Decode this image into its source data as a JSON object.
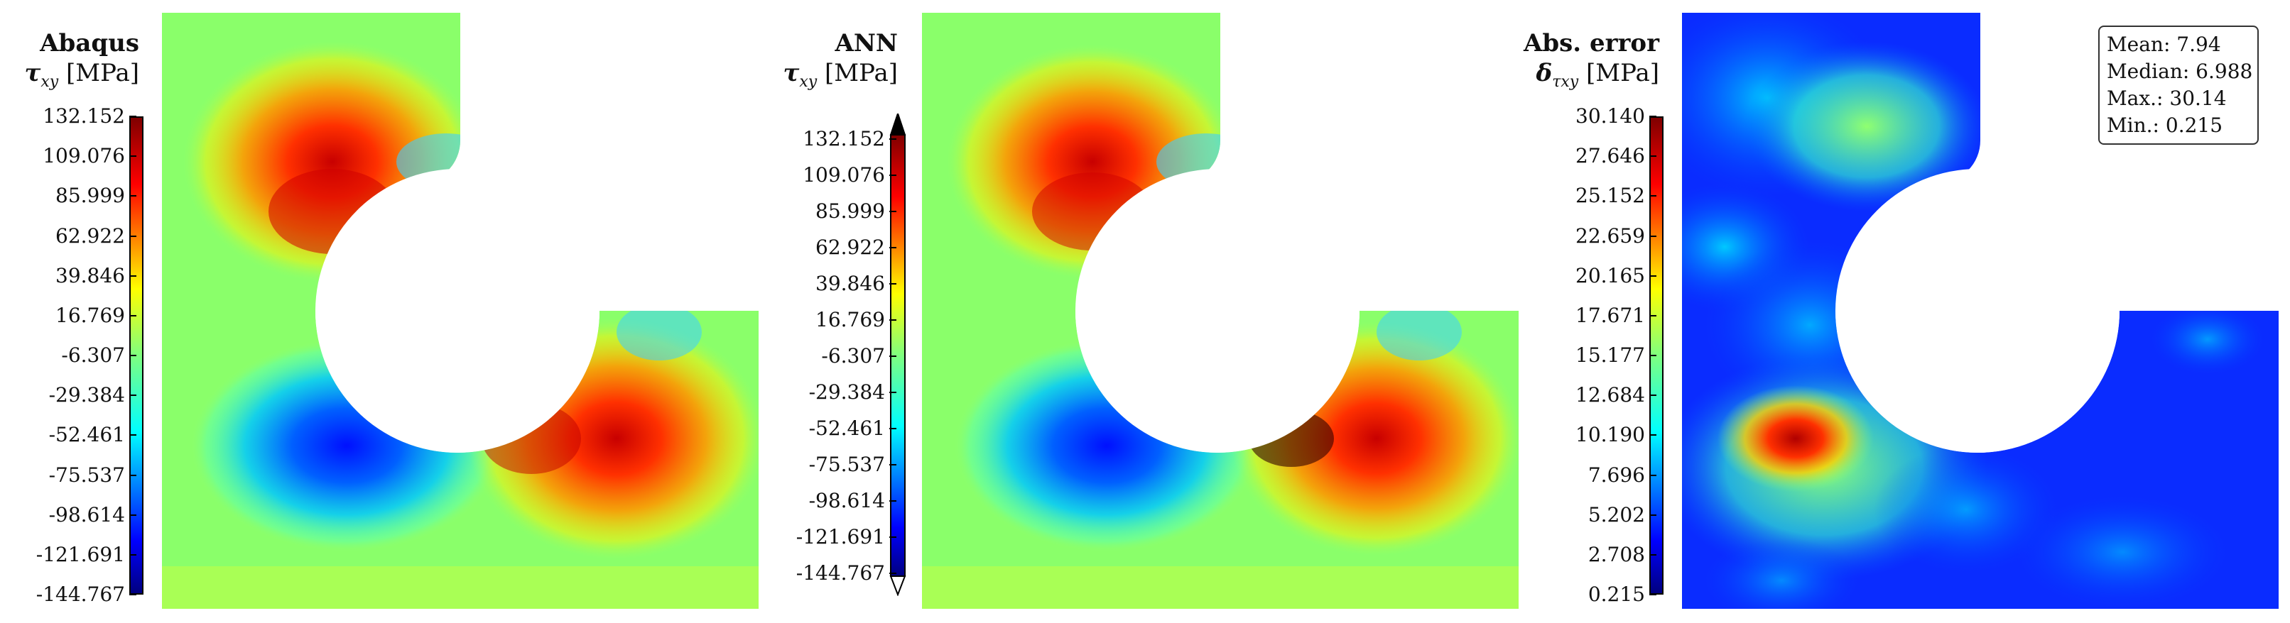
{
  "panels": [
    {
      "title": "Abaqus",
      "symbol": "τ",
      "symbol_sub": "xy",
      "unit": "[MPa]",
      "ticks": [
        "132.152",
        "109.076",
        "85.999",
        "62.922",
        "39.846",
        "16.769",
        "-6.307",
        "-29.384",
        "-52.461",
        "-75.537",
        "-98.614",
        "-121.691",
        "-144.767"
      ]
    },
    {
      "title": "ANN",
      "symbol": "τ",
      "symbol_sub": "xy",
      "unit": "[MPa]",
      "ticks": [
        "132.152",
        "109.076",
        "85.999",
        "62.922",
        "39.846",
        "16.769",
        "-6.307",
        "-29.384",
        "-52.461",
        "-75.537",
        "-98.614",
        "-121.691",
        "-144.767"
      ]
    },
    {
      "title": "Abs. error",
      "symbol": "δ",
      "symbol_sub": "τxy",
      "unit": "[MPa]",
      "ticks": [
        "30.140",
        "27.646",
        "25.152",
        "22.659",
        "20.165",
        "17.671",
        "15.177",
        "12.684",
        "10.190",
        "7.696",
        "5.202",
        "2.708",
        "0.215"
      ]
    }
  ],
  "stats": {
    "mean": "Mean: 7.94",
    "median": "Median: 6.988",
    "max": "Max.: 30.14",
    "min": "Min.: 0.215"
  },
  "colors": {
    "jet": [
      "#00007f",
      "#0000ff",
      "#007fff",
      "#00ffff",
      "#7fff7f",
      "#ffff00",
      "#ff7f00",
      "#ff0000",
      "#7f0000"
    ]
  }
}
